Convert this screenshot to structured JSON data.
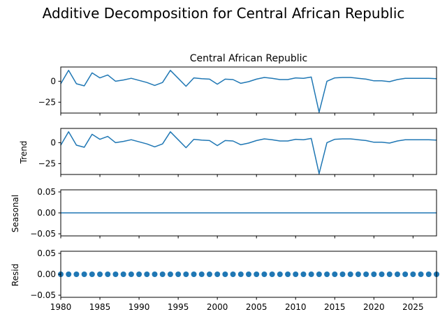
{
  "chart_data": {
    "type": "line",
    "title": "Additive Decomposition for Central African Republic",
    "x": [
      1980,
      1981,
      1982,
      1983,
      1984,
      1985,
      1986,
      1987,
      1988,
      1989,
      1990,
      1991,
      1992,
      1993,
      1994,
      1995,
      1996,
      1997,
      1998,
      1999,
      2000,
      2001,
      2002,
      2003,
      2004,
      2005,
      2006,
      2007,
      2008,
      2009,
      2010,
      2011,
      2012,
      2013,
      2014,
      2015,
      2016,
      2017,
      2018,
      2019,
      2020,
      2021,
      2022,
      2023,
      2024,
      2025,
      2026,
      2027,
      2028
    ],
    "xlim": [
      1980,
      2028
    ],
    "xticks": [
      "1980",
      "1985",
      "1990",
      "1995",
      "2000",
      "2005",
      "2010",
      "2015",
      "2020",
      "2025"
    ],
    "colors": {
      "line": "#1f77b4",
      "marker": "#1f77b4"
    },
    "panels": [
      {
        "key": "observed",
        "title": "Central African Republic",
        "ylabel": "",
        "ylim": [
          -38,
          17
        ],
        "yticks": [
          0,
          -25
        ],
        "ytick_labels": [
          "0",
          "−25"
        ],
        "style": "line",
        "values": [
          -3,
          13,
          -3,
          -5.5,
          10,
          4,
          7.5,
          0,
          1.5,
          3.5,
          1,
          -1.5,
          -5,
          -1.5,
          13,
          3.5,
          -6,
          4,
          3,
          2.5,
          -3.5,
          2.5,
          2,
          -2.5,
          -0.5,
          2.5,
          4.5,
          3.5,
          2,
          2,
          4,
          3.5,
          5,
          -37,
          0,
          4,
          4.5,
          4.5,
          3.5,
          2.5,
          0.5,
          0.5,
          -0.5,
          2,
          3.5,
          3.5,
          3.5,
          3.5,
          3
        ]
      },
      {
        "key": "trend",
        "title": "",
        "ylabel": "Trend",
        "ylim": [
          -38,
          17
        ],
        "yticks": [
          0,
          -25
        ],
        "ytick_labels": [
          "0",
          "−25"
        ],
        "style": "line",
        "values": [
          -3,
          13,
          -3,
          -5.5,
          10,
          4,
          7.5,
          0,
          1.5,
          3.5,
          1,
          -1.5,
          -5,
          -1.5,
          13,
          3.5,
          -6,
          4,
          3,
          2.5,
          -3.5,
          2.5,
          2,
          -2.5,
          -0.5,
          2.5,
          4.5,
          3.5,
          2,
          2,
          4,
          3.5,
          5,
          -37,
          0,
          4,
          4.5,
          4.5,
          3.5,
          2.5,
          0.5,
          0.5,
          -0.5,
          2,
          3.5,
          3.5,
          3.5,
          3.5,
          3
        ]
      },
      {
        "key": "seasonal",
        "title": "",
        "ylabel": "Seasonal",
        "ylim": [
          -0.055,
          0.055
        ],
        "yticks": [
          0.05,
          0.0,
          -0.05
        ],
        "ytick_labels": [
          "0.05",
          "0.00",
          "−0.05"
        ],
        "style": "line",
        "values": [
          0,
          0,
          0,
          0,
          0,
          0,
          0,
          0,
          0,
          0,
          0,
          0,
          0,
          0,
          0,
          0,
          0,
          0,
          0,
          0,
          0,
          0,
          0,
          0,
          0,
          0,
          0,
          0,
          0,
          0,
          0,
          0,
          0,
          0,
          0,
          0,
          0,
          0,
          0,
          0,
          0,
          0,
          0,
          0,
          0,
          0,
          0,
          0,
          0
        ]
      },
      {
        "key": "resid",
        "title": "",
        "ylabel": "Resid",
        "ylim": [
          -0.055,
          0.055
        ],
        "yticks": [
          0.05,
          0.0,
          -0.05
        ],
        "ytick_labels": [
          "0.05",
          "0.00",
          "−0.05"
        ],
        "style": "scatter",
        "values": [
          0,
          0,
          0,
          0,
          0,
          0,
          0,
          0,
          0,
          0,
          0,
          0,
          0,
          0,
          0,
          0,
          0,
          0,
          0,
          0,
          0,
          0,
          0,
          0,
          0,
          0,
          0,
          0,
          0,
          0,
          0,
          0,
          0,
          0,
          0,
          0,
          0,
          0,
          0,
          0,
          0,
          0,
          0,
          0,
          0,
          0,
          0,
          0,
          0
        ]
      }
    ]
  }
}
